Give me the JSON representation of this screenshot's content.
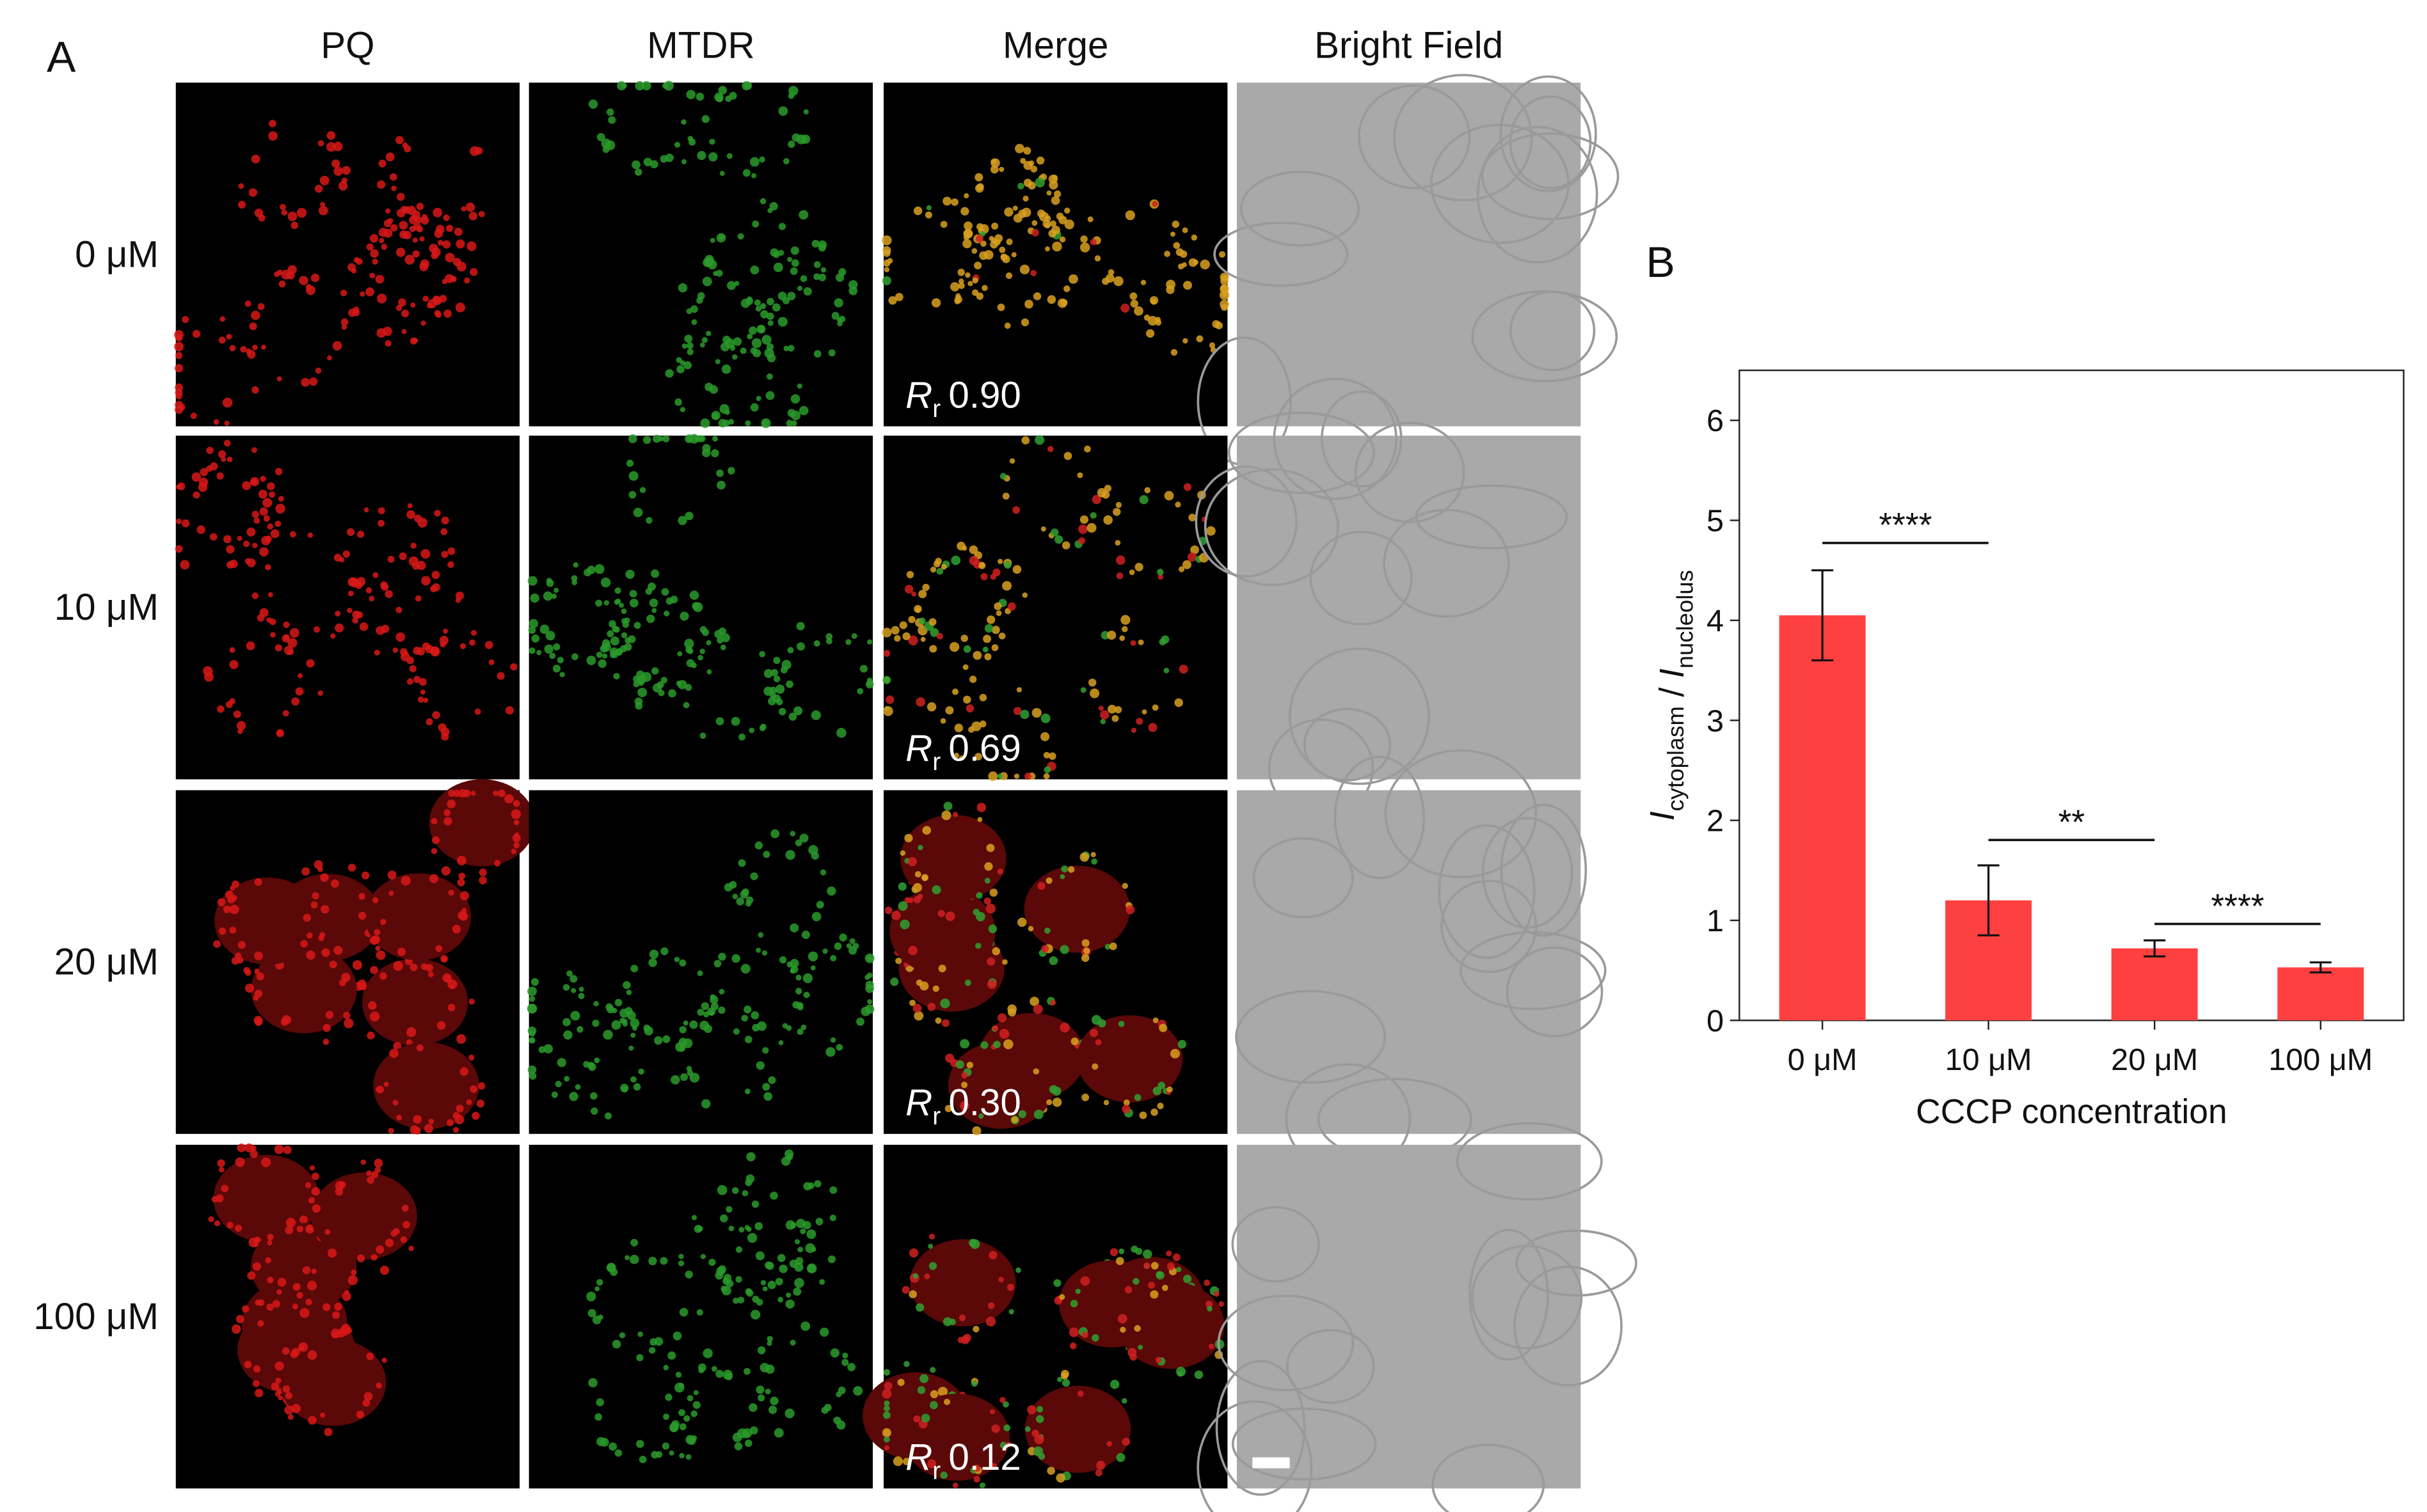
{
  "panel_a": {
    "label": "A",
    "columns": [
      "PQ",
      "MTDR",
      "Merge",
      "Bright Field"
    ],
    "rows": [
      "0 μM",
      "10 μM",
      "20 μM",
      "100 μM"
    ],
    "coefficients": [
      {
        "symbol": "R",
        "subscript": "r",
        "value": "0.90"
      },
      {
        "symbol": "R",
        "subscript": "r",
        "value": "0.69"
      },
      {
        "symbol": "R",
        "subscript": "r",
        "value": "0.30"
      },
      {
        "symbol": "R",
        "subscript": "r",
        "value": "0.12"
      }
    ]
  },
  "chart_data": {
    "type": "bar",
    "panel_label": "B",
    "categories": [
      "0 μM",
      "10 μM",
      "20 μM",
      "100 μM"
    ],
    "values": [
      4.05,
      1.2,
      0.72,
      0.53
    ],
    "errors": [
      0.45,
      0.35,
      0.08,
      0.05
    ],
    "color": "#ff4040",
    "ylim": [
      0,
      6.5
    ],
    "yticks": [
      0,
      1,
      2,
      3,
      4,
      5,
      6
    ],
    "xlabel": "CCCP concentration",
    "ylabel": [
      {
        "symbol": "I",
        "subscript": "cytoplasm"
      },
      "/",
      {
        "symbol": "I",
        "subscript": "nucleolus"
      }
    ],
    "significance": [
      "****",
      "**",
      "****"
    ]
  }
}
